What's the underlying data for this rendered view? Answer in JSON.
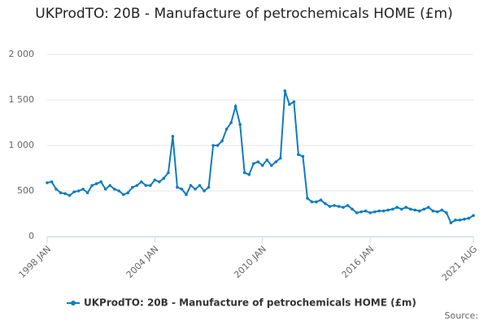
{
  "chart_data": {
    "type": "line",
    "title": "UKProdTO: 20B - Manufacture of petrochemicals HOME (£m)",
    "source": "Source:",
    "categories": [
      "1998 JAN",
      null,
      null,
      null,
      null,
      null,
      null,
      null,
      null,
      null,
      null,
      null,
      null,
      null,
      null,
      null,
      null,
      null,
      null,
      null,
      null,
      null,
      null,
      null,
      "2004 JAN",
      null,
      null,
      null,
      null,
      null,
      null,
      null,
      null,
      null,
      null,
      null,
      null,
      null,
      null,
      null,
      null,
      null,
      null,
      null,
      null,
      null,
      null,
      null,
      "2010 JAN",
      null,
      null,
      null,
      null,
      null,
      null,
      null,
      null,
      null,
      null,
      null,
      null,
      null,
      null,
      null,
      null,
      null,
      null,
      null,
      null,
      null,
      null,
      null,
      "2016 JAN",
      null,
      null,
      null,
      null,
      null,
      null,
      null,
      null,
      null,
      null,
      null,
      null,
      null,
      null,
      null,
      null,
      null,
      null,
      null,
      null,
      null,
      null,
      "2021 AUG"
    ],
    "series": [
      {
        "name": "UKProdTO: 20B - Manufacture of petrochemicals HOME (£m)",
        "color": "#0f7cc0",
        "values": [
          590,
          600,
          520,
          480,
          470,
          450,
          490,
          500,
          520,
          480,
          560,
          580,
          600,
          520,
          560,
          520,
          500,
          460,
          480,
          540,
          560,
          600,
          560,
          560,
          620,
          600,
          640,
          700,
          1100,
          540,
          520,
          460,
          560,
          520,
          560,
          500,
          540,
          1000,
          1000,
          1050,
          1180,
          1250,
          1430,
          1230,
          700,
          680,
          800,
          820,
          780,
          840,
          780,
          820,
          860,
          1600,
          1450,
          1480,
          900,
          880,
          420,
          380,
          380,
          400,
          360,
          330,
          340,
          330,
          320,
          340,
          300,
          260,
          270,
          280,
          260,
          270,
          280,
          280,
          290,
          300,
          320,
          300,
          320,
          300,
          290,
          280,
          300,
          320,
          280,
          270,
          290,
          260,
          150,
          180,
          180,
          190,
          200,
          230
        ]
      }
    ],
    "ylim": [
      0,
      2000
    ],
    "yticks": [
      0,
      500,
      {
        "value": 1000,
        "label": "1 000"
      },
      {
        "value": 1500,
        "label": "1 500"
      },
      {
        "value": 2000,
        "label": "2 000"
      }
    ],
    "grid": true,
    "legend": "bottom"
  }
}
